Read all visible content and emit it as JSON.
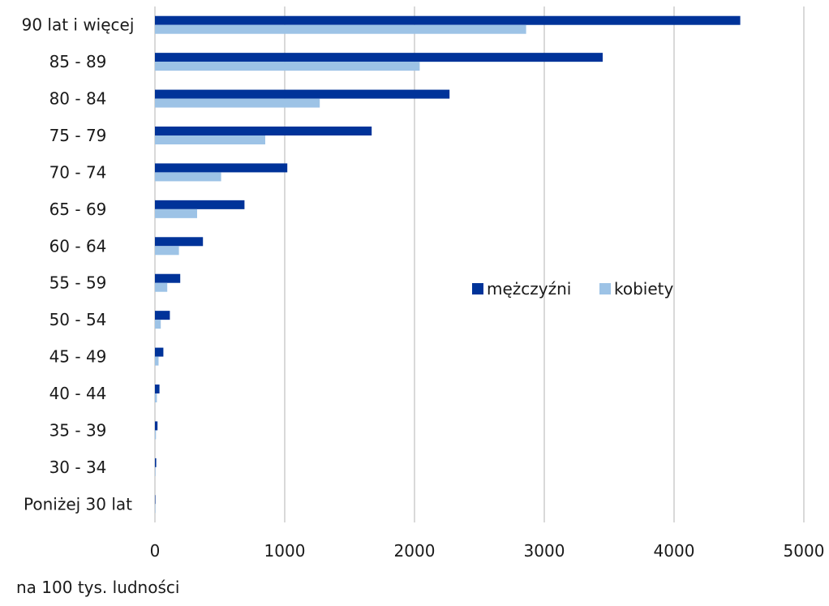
{
  "chart_data": {
    "type": "bar",
    "orientation": "horizontal",
    "categories": [
      "90 lat i więcej",
      "85 - 89",
      "80 - 84",
      "75 - 79",
      "70 - 74",
      "65 - 69",
      "60 - 64",
      "55 - 59",
      "50 - 54",
      "45 - 49",
      "40 - 44",
      "35 - 39",
      "30 - 34",
      "Poniżej 30 lat"
    ],
    "series": [
      {
        "name": "mężczyźni",
        "color": "#003399",
        "values": [
          4510,
          3450,
          2270,
          1670,
          1020,
          690,
          370,
          195,
          115,
          65,
          35,
          20,
          10,
          2
        ]
      },
      {
        "name": "kobiety",
        "color": "#9dc3e6",
        "values": [
          2860,
          2040,
          1270,
          850,
          510,
          325,
          185,
          95,
          45,
          28,
          15,
          8,
          4,
          1
        ]
      }
    ],
    "xlim": [
      0,
      5000
    ],
    "xticks": [
      "0",
      "1000",
      "2000",
      "3000",
      "4000",
      "5000"
    ],
    "grid": true,
    "legend_position": "center-right",
    "footnote": "na 100 tys. ludności"
  }
}
